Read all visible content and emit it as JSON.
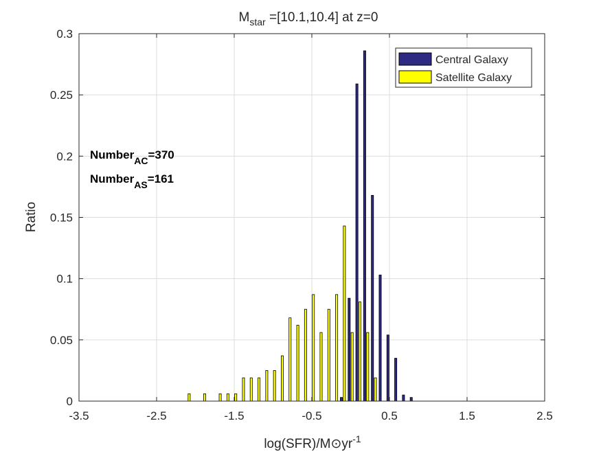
{
  "chart_data": {
    "type": "bar",
    "title": {
      "main": "M",
      "sub": "star",
      "rest": " =[10.1,10.4] at z=0"
    },
    "xlabel": {
      "main": "log(SFR)/M",
      "symbol": "⊙",
      "unit": "yr",
      "sup": "-1"
    },
    "ylabel": "Ratio",
    "xlim": [
      -3.5,
      2.5
    ],
    "ylim": [
      0,
      0.3
    ],
    "xticks": [
      -3.5,
      -2.5,
      -1.5,
      -0.5,
      0.5,
      1.5,
      2.5
    ],
    "xtick_labels": [
      "-3.5",
      "-2.5",
      "-1.5",
      "-0.5",
      "0.5",
      "1.5",
      "2.5"
    ],
    "yticks": [
      0,
      0.05,
      0.1,
      0.15,
      0.2,
      0.25,
      0.3
    ],
    "ytick_labels": [
      "0",
      "0.05",
      "0.1",
      "0.15",
      "0.2",
      "0.25",
      "0.3"
    ],
    "grid": true,
    "legend_position": "top-right",
    "bin_width": 0.1,
    "x": [
      -3.4,
      -3.3,
      -3.2,
      -3.1,
      -3.0,
      -2.9,
      -2.8,
      -2.7,
      -2.6,
      -2.5,
      -2.4,
      -2.3,
      -2.2,
      -2.1,
      -2.0,
      -1.9,
      -1.8,
      -1.7,
      -1.6,
      -1.5,
      -1.4,
      -1.3,
      -1.2,
      -1.1,
      -1.0,
      -0.9,
      -0.8,
      -0.7,
      -0.6,
      -0.5,
      -0.4,
      -0.3,
      -0.2,
      -0.1,
      0.0,
      0.1,
      0.2,
      0.3,
      0.4,
      0.5,
      0.6,
      0.7,
      0.8,
      0.9,
      1.0,
      1.1,
      1.2,
      1.3,
      1.4,
      1.5,
      1.6
    ],
    "series": [
      {
        "name": "Central Galaxy",
        "color": "#2e2a84",
        "values": [
          0,
          0,
          0,
          0,
          0,
          0,
          0,
          0,
          0,
          0,
          0,
          0,
          0,
          0,
          0,
          0,
          0,
          0,
          0,
          0,
          0,
          0,
          0,
          0,
          0,
          0,
          0,
          0,
          0,
          0,
          0,
          0,
          0,
          0.003,
          0.084,
          0.259,
          0.286,
          0.168,
          0.103,
          0.054,
          0.035,
          0.005,
          0.003,
          0,
          0,
          0,
          0,
          0,
          0,
          0,
          0
        ]
      },
      {
        "name": "Satellite Galaxy",
        "color": "#ffff00",
        "values": [
          0,
          0,
          0,
          0,
          0,
          0,
          0,
          0,
          0,
          0,
          0,
          0,
          0,
          0.006,
          0,
          0.006,
          0,
          0.006,
          0.006,
          0.006,
          0.019,
          0.019,
          0.019,
          0.025,
          0.025,
          0.037,
          0.068,
          0.062,
          0.075,
          0.087,
          0.056,
          0.075,
          0.087,
          0.143,
          0.056,
          0.081,
          0.056,
          0.019,
          0,
          0,
          0,
          0,
          0,
          0,
          0,
          0,
          0,
          0,
          0,
          0,
          0
        ]
      }
    ],
    "annotations": [
      {
        "main": "Number",
        "sub": "AC",
        "rest": "=370"
      },
      {
        "main": "Number",
        "sub": "AS",
        "rest": "=161"
      }
    ]
  }
}
